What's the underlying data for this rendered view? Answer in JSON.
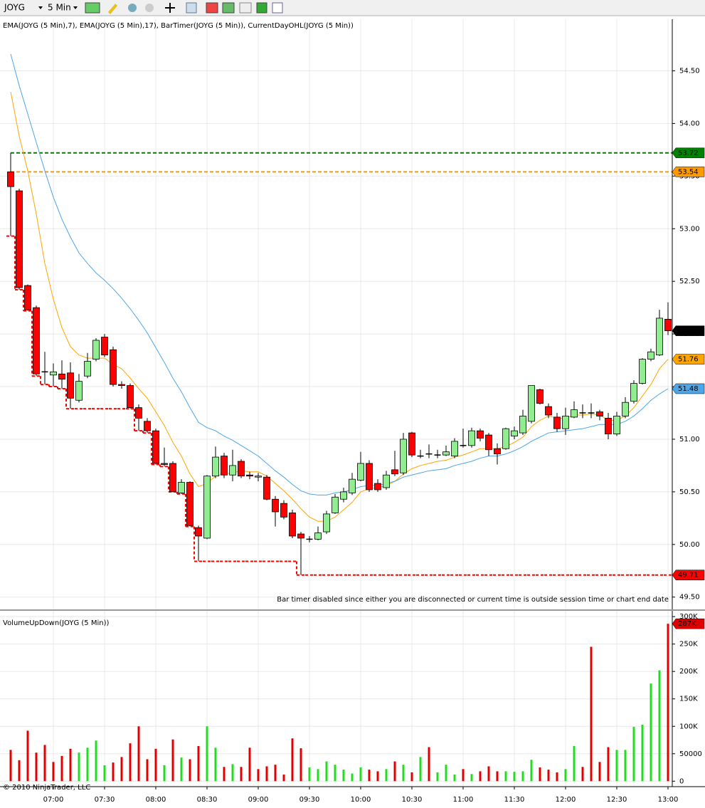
{
  "toolbar": {
    "symbol": "JOYG",
    "interval": "5 Min"
  },
  "footer": "© 2010 NinjaTrader, LLC",
  "chart_data": [
    {
      "type": "candlestick",
      "indicator_label": "EMA(JOYG (5 Min),7), EMA(JOYG (5 Min),17), BarTimer(JOYG (5 Min)), CurrentDayOHL(JOYG (5 Min))",
      "bar_timer_text": "Bar timer disabled since either you are disconnected or current time is outside session time or chart end date",
      "up_color": "#90ee90",
      "down_color": "#ff0000",
      "open": [
        53.54,
        53.36,
        52.46,
        52.25,
        51.64,
        51.61,
        51.62,
        51.63,
        51.37,
        51.6,
        51.76,
        51.97,
        51.85,
        51.52,
        51.51,
        51.3,
        51.17,
        51.08,
        50.77,
        50.77,
        50.49,
        50.59,
        50.16,
        50.06,
        50.65,
        50.84,
        50.66,
        50.79,
        50.66,
        50.64,
        50.64,
        50.43,
        50.39,
        50.3,
        50.1,
        50.05,
        50.05,
        50.12,
        50.3,
        50.43,
        50.49,
        50.61,
        50.77,
        50.58,
        50.54,
        50.71,
        50.68,
        51.06,
        50.84,
        50.86,
        50.85,
        50.85,
        50.84,
        50.94,
        50.94,
        51.08,
        51.04,
        50.91,
        50.91,
        51.03,
        51.06,
        51.17,
        51.47,
        51.31,
        51.21,
        51.1,
        51.21,
        51.25,
        51.25,
        51.26,
        51.2,
        51.05,
        51.22,
        51.36,
        51.53,
        51.76,
        51.8,
        52.14
      ],
      "high": [
        53.72,
        53.38,
        52.47,
        52.27,
        51.83,
        51.72,
        51.75,
        51.73,
        51.62,
        51.82,
        51.96,
        52.0,
        51.88,
        51.55,
        51.53,
        51.33,
        51.2,
        51.1,
        50.92,
        50.79,
        50.62,
        50.6,
        50.18,
        50.66,
        50.93,
        50.87,
        50.9,
        50.81,
        50.69,
        50.68,
        50.66,
        50.46,
        50.42,
        50.33,
        50.12,
        50.08,
        50.17,
        50.32,
        50.48,
        50.54,
        50.68,
        50.88,
        50.8,
        50.62,
        50.7,
        50.89,
        51.06,
        51.07,
        50.9,
        50.95,
        50.9,
        50.94,
        51.01,
        51.1,
        51.11,
        51.1,
        51.06,
        50.96,
        51.11,
        51.12,
        51.28,
        51.51,
        51.48,
        51.34,
        51.25,
        51.3,
        51.36,
        51.33,
        51.34,
        51.28,
        51.25,
        51.26,
        51.4,
        51.56,
        51.77,
        51.86,
        52.23,
        52.3
      ],
      "low": [
        52.93,
        52.42,
        52.22,
        51.6,
        51.52,
        51.5,
        51.48,
        51.29,
        51.35,
        51.58,
        51.74,
        51.78,
        51.5,
        51.48,
        51.29,
        51.08,
        51.06,
        50.76,
        50.74,
        50.5,
        50.48,
        50.17,
        49.84,
        50.05,
        50.63,
        50.63,
        50.6,
        50.63,
        50.62,
        50.6,
        50.42,
        50.17,
        50.24,
        50.06,
        49.71,
        50.02,
        50.04,
        50.1,
        50.29,
        50.4,
        50.47,
        50.6,
        50.5,
        50.5,
        50.52,
        50.65,
        50.66,
        50.83,
        50.82,
        50.82,
        50.82,
        50.84,
        50.82,
        50.92,
        50.92,
        50.98,
        50.84,
        50.76,
        50.9,
        51.0,
        51.04,
        51.15,
        51.33,
        51.2,
        51.07,
        51.04,
        51.2,
        51.2,
        51.2,
        51.18,
        51.0,
        51.03,
        51.2,
        51.34,
        51.52,
        51.74,
        51.79,
        51.99
      ],
      "close": [
        53.4,
        52.44,
        52.23,
        51.62,
        51.64,
        51.64,
        51.57,
        51.39,
        51.55,
        51.74,
        51.94,
        51.8,
        51.52,
        51.51,
        51.3,
        51.2,
        51.08,
        50.77,
        50.76,
        50.5,
        50.59,
        50.18,
        50.08,
        50.65,
        50.83,
        50.66,
        50.75,
        50.65,
        50.65,
        50.65,
        50.43,
        50.31,
        50.26,
        50.08,
        50.06,
        50.05,
        50.11,
        50.29,
        50.45,
        50.5,
        50.62,
        50.77,
        50.52,
        50.52,
        50.66,
        50.67,
        51.0,
        50.85,
        50.84,
        50.86,
        50.85,
        50.88,
        50.98,
        50.94,
        51.08,
        51.01,
        50.9,
        50.86,
        51.1,
        51.08,
        51.22,
        51.51,
        51.34,
        51.23,
        51.1,
        51.22,
        51.28,
        51.25,
        51.25,
        51.22,
        51.05,
        51.22,
        51.35,
        51.53,
        51.76,
        51.83,
        52.15,
        52.03
      ],
      "series": [
        {
          "color": "#ffa500",
          "values": [
            54.3,
            53.88,
            53.55,
            53.14,
            52.67,
            52.33,
            52.06,
            51.88,
            51.8,
            51.77,
            51.77,
            51.77,
            51.71,
            51.67,
            51.58,
            51.48,
            51.39,
            51.26,
            51.13,
            50.97,
            50.84,
            50.67,
            50.55,
            50.58,
            50.65,
            50.67,
            50.68,
            50.7,
            50.69,
            50.69,
            50.65,
            50.58,
            50.51,
            50.43,
            50.34,
            50.26,
            50.22,
            50.22,
            50.26,
            50.33,
            50.4,
            50.5,
            50.53,
            50.54,
            50.56,
            50.6,
            50.67,
            50.72,
            50.75,
            50.77,
            50.79,
            50.8,
            50.83,
            50.85,
            50.88,
            50.91,
            50.91,
            50.91,
            50.93,
            50.97,
            51.02,
            51.12,
            51.18,
            51.22,
            51.2,
            51.2,
            51.23,
            51.23,
            51.24,
            51.23,
            51.18,
            51.18,
            51.22,
            51.3,
            51.41,
            51.52,
            51.67,
            51.76
          ]
        },
        {
          "color": "#4da6e8",
          "values": [
            54.66,
            54.36,
            54.09,
            53.82,
            53.55,
            53.3,
            53.09,
            52.92,
            52.77,
            52.67,
            52.58,
            52.51,
            52.43,
            52.34,
            52.24,
            52.13,
            52.01,
            51.87,
            51.73,
            51.58,
            51.45,
            51.3,
            51.16,
            51.11,
            51.08,
            51.03,
            50.99,
            50.94,
            50.89,
            50.84,
            50.77,
            50.7,
            50.64,
            50.57,
            50.51,
            50.48,
            50.47,
            50.47,
            50.49,
            50.5,
            50.52,
            50.55,
            50.56,
            50.56,
            50.58,
            50.6,
            50.64,
            50.66,
            50.68,
            50.7,
            50.71,
            50.72,
            50.75,
            50.77,
            50.79,
            50.82,
            50.84,
            50.84,
            50.86,
            50.89,
            50.93,
            50.98,
            51.02,
            51.06,
            51.07,
            51.08,
            51.09,
            51.1,
            51.12,
            51.14,
            51.14,
            51.14,
            51.17,
            51.22,
            51.29,
            51.37,
            51.43,
            51.48
          ]
        }
      ],
      "day_low": {
        "color": "#ff0000",
        "values": [
          52.93,
          52.42,
          52.22,
          51.6,
          51.52,
          51.5,
          51.48,
          51.29,
          51.29,
          51.29,
          51.29,
          51.29,
          51.29,
          51.29,
          51.29,
          51.08,
          51.06,
          50.76,
          50.74,
          50.5,
          50.48,
          50.17,
          49.84,
          49.84,
          49.84,
          49.84,
          49.84,
          49.84,
          49.84,
          49.84,
          49.84,
          49.84,
          49.84,
          49.84,
          49.71,
          49.71,
          49.71,
          49.71,
          49.71,
          49.71,
          49.71,
          49.71,
          49.71,
          49.71,
          49.71,
          49.71,
          49.71,
          49.71,
          49.71,
          49.71,
          49.71,
          49.71,
          49.71,
          49.71,
          49.71,
          49.71,
          49.71,
          49.71,
          49.71,
          49.71,
          49.71,
          49.71,
          49.71,
          49.71,
          49.71,
          49.71,
          49.71,
          49.71,
          49.71,
          49.71,
          49.71,
          49.71,
          49.71,
          49.71,
          49.71,
          49.71,
          49.71,
          49.71
        ]
      },
      "hlines": [
        {
          "value": 53.72,
          "color": "#008000"
        },
        {
          "value": 53.54,
          "color": "#ff9900"
        }
      ],
      "ylim": [
        49.39,
        54.97
      ],
      "yticks": [
        {
          "value": 49.5,
          "label": "49.50"
        },
        {
          "value": 50,
          "label": "50.00"
        },
        {
          "value": 50.5,
          "label": "50.50"
        },
        {
          "value": 51,
          "label": "51.00"
        },
        {
          "value": 51.5,
          "label": "51.50"
        },
        {
          "value": 52,
          "label": "52.00"
        },
        {
          "value": 52.5,
          "label": "52.50"
        },
        {
          "value": 53,
          "label": "53.00"
        },
        {
          "value": 53.5,
          "label": "53.50"
        },
        {
          "value": 54,
          "label": "54.00"
        },
        {
          "value": 54.5,
          "label": "54.50"
        }
      ],
      "grid": true
    },
    {
      "type": "bar",
      "title": "VolumeUpDown(JOYG (5 Min))",
      "categories": [
        null,
        null,
        null,
        null,
        null,
        "07:00",
        null,
        null,
        null,
        null,
        null,
        "07:30",
        null,
        null,
        null,
        null,
        null,
        "08:00",
        null,
        null,
        null,
        null,
        null,
        "08:30",
        null,
        null,
        null,
        null,
        null,
        "09:00",
        null,
        null,
        null,
        null,
        null,
        "09:30",
        null,
        null,
        null,
        null,
        null,
        "10:00",
        null,
        null,
        null,
        null,
        null,
        "10:30",
        null,
        null,
        null,
        null,
        null,
        "11:00",
        null,
        null,
        null,
        null,
        null,
        "11:30",
        null,
        null,
        null,
        null,
        null,
        "12:00",
        null,
        null,
        null,
        null,
        null,
        "12:30",
        null,
        null,
        null,
        null,
        null,
        "13:00"
      ],
      "series": [
        {
          "color": "#22dd22",
          "values": [
            null,
            null,
            null,
            null,
            null,
            null,
            null,
            null,
            52000,
            61000,
            74000,
            29000,
            null,
            null,
            null,
            null,
            null,
            null,
            29000,
            null,
            43000,
            null,
            null,
            100000,
            61000,
            null,
            31000,
            null,
            null,
            null,
            null,
            null,
            null,
            null,
            null,
            25000,
            22000,
            36000,
            30000,
            21000,
            14000,
            25000,
            null,
            null,
            22000,
            null,
            30000,
            null,
            44000,
            null,
            16000,
            30000,
            12000,
            null,
            13000,
            null,
            null,
            null,
            18000,
            17000,
            18000,
            39000,
            null,
            null,
            null,
            22000,
            64000,
            null,
            null,
            null,
            null,
            57000,
            57000,
            99000,
            103000,
            178000,
            202000,
            null
          ]
        },
        {
          "color": "#e00000",
          "values": [
            57000,
            38000,
            92000,
            52000,
            66000,
            35000,
            46000,
            59000,
            null,
            null,
            null,
            null,
            34000,
            44000,
            69000,
            100000,
            40000,
            59000,
            null,
            76000,
            null,
            40000,
            64000,
            null,
            null,
            26000,
            null,
            26000,
            61000,
            22000,
            27000,
            30000,
            12000,
            78000,
            60000,
            null,
            null,
            null,
            null,
            null,
            null,
            null,
            21000,
            18000,
            null,
            36000,
            null,
            16000,
            null,
            62000,
            null,
            null,
            null,
            22000,
            null,
            18000,
            27000,
            18000,
            null,
            null,
            null,
            null,
            25000,
            21000,
            16000,
            null,
            null,
            26000,
            245000,
            35000,
            62000,
            null,
            null,
            null,
            null,
            null,
            null,
            287000
          ],
          "value_labels": [
            null,
            null,
            null,
            null,
            null,
            null,
            null,
            null,
            null,
            null,
            null,
            null,
            null,
            null,
            null,
            null,
            null,
            null,
            null,
            null,
            null,
            null,
            null,
            null,
            null,
            null,
            null,
            null,
            null,
            null,
            null,
            null,
            null,
            null,
            null,
            null,
            null,
            null,
            null,
            null,
            null,
            null,
            null,
            null,
            null,
            null,
            null,
            null,
            null,
            null,
            null,
            null,
            null,
            null,
            null,
            null,
            null,
            null,
            null,
            null,
            null,
            null,
            null,
            null,
            null,
            null,
            null,
            null,
            null,
            null,
            null,
            null,
            null,
            null,
            null,
            null,
            null,
            "287K"
          ]
        }
      ],
      "ylim": [
        -10000,
        308000
      ],
      "yticks": [
        0,
        50000,
        {
          "value": 100000,
          "label": "100K"
        },
        {
          "value": 150000,
          "label": "150K"
        },
        {
          "value": 200000,
          "label": "200K"
        },
        {
          "value": 250000,
          "label": "250K"
        },
        {
          "value": 300000,
          "label": "300K"
        }
      ],
      "grid": true
    }
  ]
}
